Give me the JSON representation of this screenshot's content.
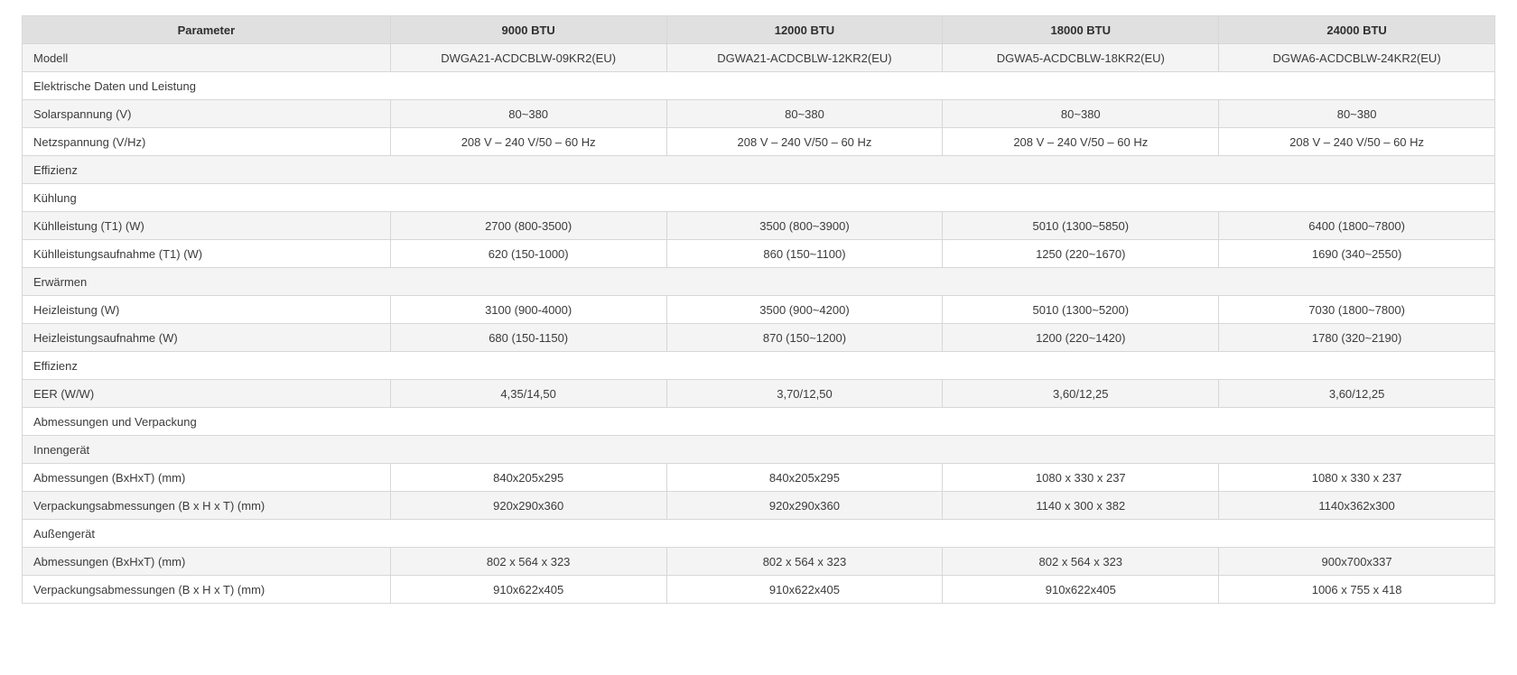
{
  "theme": {
    "header_bg": "#e0e0e0",
    "shaded_row_bg": "#f4f4f4",
    "border_color": "#d7d7d7",
    "text_color": "#3b3b3b"
  },
  "table": {
    "columns": [
      "Parameter",
      "9000 BTU",
      "12000 BTU",
      "18000 BTU",
      "24000 BTU"
    ],
    "rows": [
      {
        "type": "data",
        "shaded": true,
        "label": "Modell",
        "values": [
          "DWGA21-ACDCBLW-09KR2(EU)",
          "DGWA21-ACDCBLW-12KR2(EU)",
          "DGWA5-ACDCBLW-18KR2(EU)",
          "DGWA6-ACDCBLW-24KR2(EU)"
        ]
      },
      {
        "type": "section",
        "shaded": false,
        "label": "Elektrische Daten und Leistung"
      },
      {
        "type": "data",
        "shaded": true,
        "label": "Solarspannung (V)",
        "values": [
          "80~380",
          "80~380",
          "80~380",
          "80~380"
        ]
      },
      {
        "type": "data",
        "shaded": false,
        "label": "Netzspannung (V/Hz)",
        "values": [
          "208 V – 240 V/50 – 60 Hz",
          "208 V – 240 V/50 – 60 Hz",
          "208 V – 240 V/50 – 60 Hz",
          "208 V – 240 V/50 – 60 Hz"
        ]
      },
      {
        "type": "section",
        "shaded": true,
        "label": "Effizienz"
      },
      {
        "type": "section",
        "shaded": false,
        "label": "Kühlung"
      },
      {
        "type": "data",
        "shaded": true,
        "label": "Kühlleistung (T1) (W)",
        "values": [
          "2700 (800-3500)",
          "3500 (800~3900)",
          "5010 (1300~5850)",
          "6400 (1800~7800)"
        ]
      },
      {
        "type": "data",
        "shaded": false,
        "label": "Kühlleistungsaufnahme (T1) (W)",
        "values": [
          "620 (150-1000)",
          "860 (150~1100)",
          "1250 (220~1670)",
          "1690 (340~2550)"
        ]
      },
      {
        "type": "section",
        "shaded": true,
        "label": "Erwärmen"
      },
      {
        "type": "data",
        "shaded": false,
        "label": "Heizleistung (W)",
        "values": [
          "3100 (900-4000)",
          "3500 (900~4200)",
          "5010 (1300~5200)",
          "7030 (1800~7800)"
        ]
      },
      {
        "type": "data",
        "shaded": true,
        "label": "Heizleistungsaufnahme (W)",
        "values": [
          "680 (150-1150)",
          "870 (150~1200)",
          "1200 (220~1420)",
          "1780 (320~2190)"
        ]
      },
      {
        "type": "section",
        "shaded": false,
        "label": "Effizienz"
      },
      {
        "type": "data",
        "shaded": true,
        "label": "EER (W/W)",
        "values": [
          "4,35/14,50",
          "3,70/12,50",
          "3,60/12,25",
          "3,60/12,25"
        ]
      },
      {
        "type": "section",
        "shaded": false,
        "label": "Abmessungen und Verpackung"
      },
      {
        "type": "section",
        "shaded": true,
        "label": "Innengerät"
      },
      {
        "type": "data",
        "shaded": false,
        "label": "Abmessungen (BxHxT) (mm)",
        "values": [
          "840x205x295",
          "840x205x295",
          "1080 x 330 x 237",
          "1080 x 330 x 237"
        ]
      },
      {
        "type": "data",
        "shaded": true,
        "label": "Verpackungsabmessungen (B x H x T) (mm)",
        "values": [
          "920x290x360",
          "920x290x360",
          "1140 x 300 x 382",
          "1140x362x300"
        ]
      },
      {
        "type": "section",
        "shaded": false,
        "label": "Außengerät"
      },
      {
        "type": "data",
        "shaded": true,
        "label": "Abmessungen (BxHxT) (mm)",
        "values": [
          "802 x 564 x 323",
          "802 x 564 x 323",
          "802 x 564 x 323",
          "900x700x337"
        ]
      },
      {
        "type": "data",
        "shaded": false,
        "label": "Verpackungsabmessungen (B x H x T) (mm)",
        "values": [
          "910x622x405",
          "910x622x405",
          "910x622x405",
          "1006 x 755 x 418"
        ]
      }
    ]
  }
}
